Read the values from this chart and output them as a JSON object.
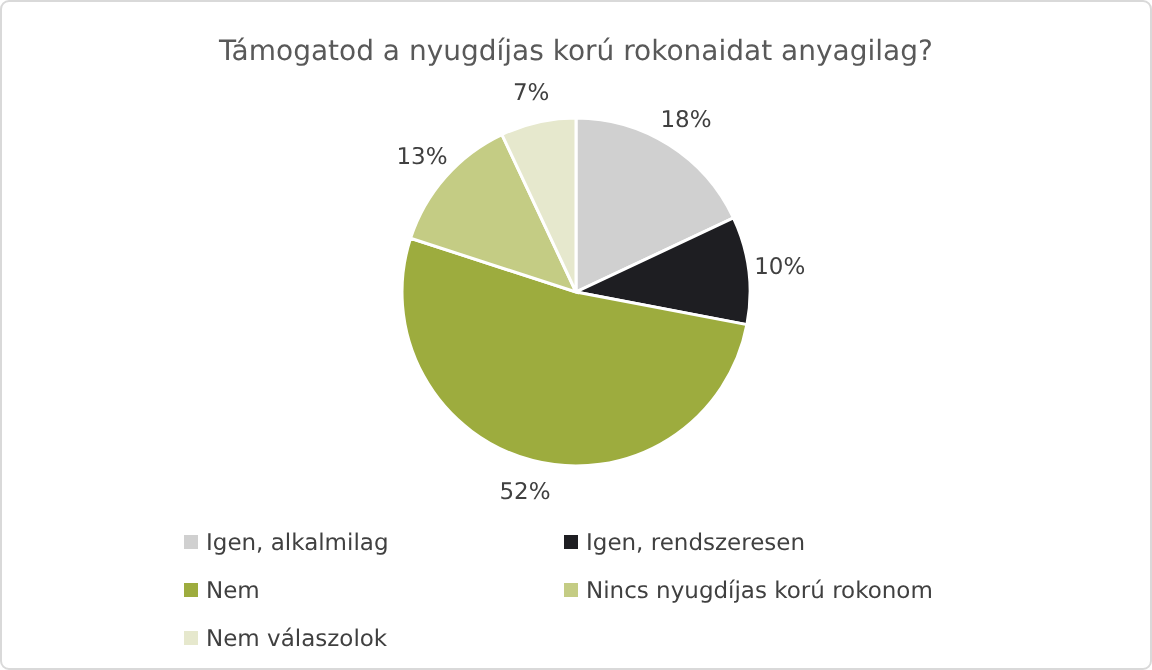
{
  "chart_data": {
    "type": "pie",
    "title": "Támogatod a nyugdíjas korú rokonaidat anyagilag?",
    "categories": [
      "Igen, alkalmilag",
      "Igen, rendszeresen",
      "Nem",
      "Nincs nyugdíjas korú rokonom",
      "Nem válaszolok"
    ],
    "values": [
      18,
      10,
      52,
      13,
      7
    ],
    "colors": [
      "#d0d0d0",
      "#1e1e22",
      "#9dac3e",
      "#c4cc84",
      "#e6e8cd"
    ],
    "value_labels": [
      "18%",
      "10%",
      "52%",
      "13%",
      "7%"
    ],
    "legend": "bottom"
  }
}
